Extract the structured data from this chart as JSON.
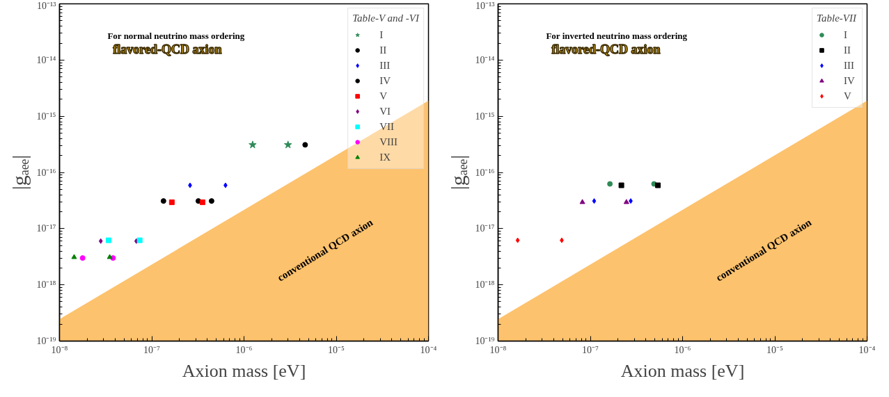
{
  "chart_data": [
    {
      "type": "scatter",
      "xlabel": "Axion mass [eV]",
      "ylabel": "|gₐₑₑ|",
      "legend_title": "Table-V and -VI",
      "legend": "top right",
      "log": "xy",
      "grid": false,
      "xlim": [
        1e-08,
        0.0001
      ],
      "ylim": [
        1e-19,
        1e-13
      ],
      "xticks": [
        {
          "value": 1e-08,
          "label": "10⁻⁸"
        },
        {
          "value": 1e-07,
          "label": "10⁻⁷"
        },
        {
          "value": 1e-06,
          "label": "10⁻⁶"
        },
        {
          "value": 1e-05,
          "label": "10⁻⁵"
        },
        {
          "value": 0.0001,
          "label": "10⁻⁴"
        }
      ],
      "yticks": [
        {
          "value": 1e-19,
          "label": "10⁻¹⁹"
        },
        {
          "value": 1e-18,
          "label": "10⁻¹⁸"
        },
        {
          "value": 1e-17,
          "label": "10⁻¹⁷"
        },
        {
          "value": 1e-16,
          "label": "10⁻¹⁶"
        },
        {
          "value": 1e-15,
          "label": "10⁻¹⁵"
        },
        {
          "value": 1e-14,
          "label": "10⁻¹⁴"
        },
        {
          "value": 1e-13,
          "label": "10⁻¹³"
        }
      ],
      "series": [
        {
          "type": "area",
          "color": "#fdb754",
          "x": [
            1e-08,
            0.0001
          ],
          "values": [
            2.45e-19,
            1.9e-15
          ]
        },
        {
          "name": "I",
          "color": "#2e8b57",
          "marker": "star",
          "x": [
            1.24e-06,
            3e-06
          ],
          "values": [
            3.1e-16,
            3.1e-16
          ]
        },
        {
          "name": "II",
          "color": "#000000",
          "marker": "circle",
          "x": [
            4.6e-06
          ],
          "values": [
            3.1e-16
          ]
        },
        {
          "name": "III",
          "color": "#0000ff",
          "marker": "diamond",
          "x": [
            2.6e-07,
            6.3e-07
          ],
          "values": [
            5.9e-17,
            5.9e-17
          ]
        },
        {
          "name": "IV",
          "color": "#000000",
          "marker": "circle",
          "x": [
            1.34e-07,
            3.2e-07,
            4.45e-07
          ],
          "values": [
            3.1e-17,
            3.1e-17,
            3.1e-17
          ]
        },
        {
          "name": "V",
          "color": "#ff0000",
          "marker": "square",
          "x": [
            1.65e-07,
            3.55e-07
          ],
          "values": [
            2.95e-17,
            2.95e-17
          ]
        },
        {
          "name": "VI",
          "color": "#800080",
          "marker": "diamond",
          "x": [
            2.8e-08,
            6.8e-08
          ],
          "values": [
            6e-18,
            6e-18
          ]
        },
        {
          "name": "VII",
          "color": "#00ffff",
          "marker": "square",
          "x": [
            3.4e-08,
            7.4e-08
          ],
          "values": [
            6.2e-18,
            6.2e-18
          ]
        },
        {
          "name": "VIII",
          "color": "#ff00ff",
          "marker": "circle",
          "x": [
            1.78e-08,
            3.8e-08
          ],
          "values": [
            3e-18,
            3e-18
          ]
        },
        {
          "name": "IX",
          "color": "#008000",
          "marker": "triangle",
          "x": [
            1.44e-08,
            3.5e-08
          ],
          "values": [
            3.1e-18,
            3.1e-18
          ]
        }
      ],
      "annotations": [
        "For normal neutrino mass ordering",
        "flavored-QCD axion",
        "conventional QCD axion"
      ]
    },
    {
      "type": "scatter",
      "xlabel": "Axion mass [eV]",
      "ylabel": "|gₐₑₑ|",
      "legend_title": "Table-VII",
      "legend": "top right",
      "log": "xy",
      "grid": false,
      "xlim": [
        1e-08,
        0.0001
      ],
      "ylim": [
        1e-19,
        1e-13
      ],
      "xticks": [
        {
          "value": 1e-08,
          "label": "10⁻⁸"
        },
        {
          "value": 1e-07,
          "label": "10⁻⁷"
        },
        {
          "value": 1e-06,
          "label": "10⁻⁶"
        },
        {
          "value": 1e-05,
          "label": "10⁻⁵"
        },
        {
          "value": 0.0001,
          "label": "10⁻⁴"
        }
      ],
      "yticks": [
        {
          "value": 1e-19,
          "label": "10⁻¹⁹"
        },
        {
          "value": 1e-18,
          "label": "10⁻¹⁸"
        },
        {
          "value": 1e-17,
          "label": "10⁻¹⁷"
        },
        {
          "value": 1e-16,
          "label": "10⁻¹⁶"
        },
        {
          "value": 1e-15,
          "label": "10⁻¹⁵"
        },
        {
          "value": 1e-14,
          "label": "10⁻¹⁴"
        },
        {
          "value": 1e-13,
          "label": "10⁻¹³"
        }
      ],
      "series": [
        {
          "type": "area",
          "color": "#fdb754",
          "x": [
            1e-08,
            0.0001
          ],
          "values": [
            2.45e-19,
            1.9e-15
          ]
        },
        {
          "name": "I",
          "color": "#2e8b57",
          "marker": "circle",
          "x": [
            1.63e-07,
            4.9e-07
          ],
          "values": [
            6.25e-17,
            6.25e-17
          ]
        },
        {
          "name": "II",
          "color": "#000000",
          "marker": "square",
          "x": [
            2.17e-07,
            5.4e-07
          ],
          "values": [
            5.9e-17,
            5.9e-17
          ]
        },
        {
          "name": "III",
          "color": "#0000ff",
          "marker": "diamond",
          "x": [
            1.1e-07,
            2.74e-07
          ],
          "values": [
            3.1e-17,
            3.1e-17
          ]
        },
        {
          "name": "IV",
          "color": "#800080",
          "marker": "triangle",
          "x": [
            8.2e-08,
            2.46e-07
          ],
          "values": [
            2.95e-17,
            2.95e-17
          ]
        },
        {
          "name": "V",
          "color": "#ff0000",
          "marker": "diamond",
          "x": [
            1.63e-08,
            4.9e-08
          ],
          "values": [
            6.2e-18,
            6.2e-18
          ]
        }
      ],
      "annotations": [
        "For inverted neutrino mass ordering",
        "flavored-QCD axion",
        "conventional QCD axion"
      ]
    }
  ]
}
